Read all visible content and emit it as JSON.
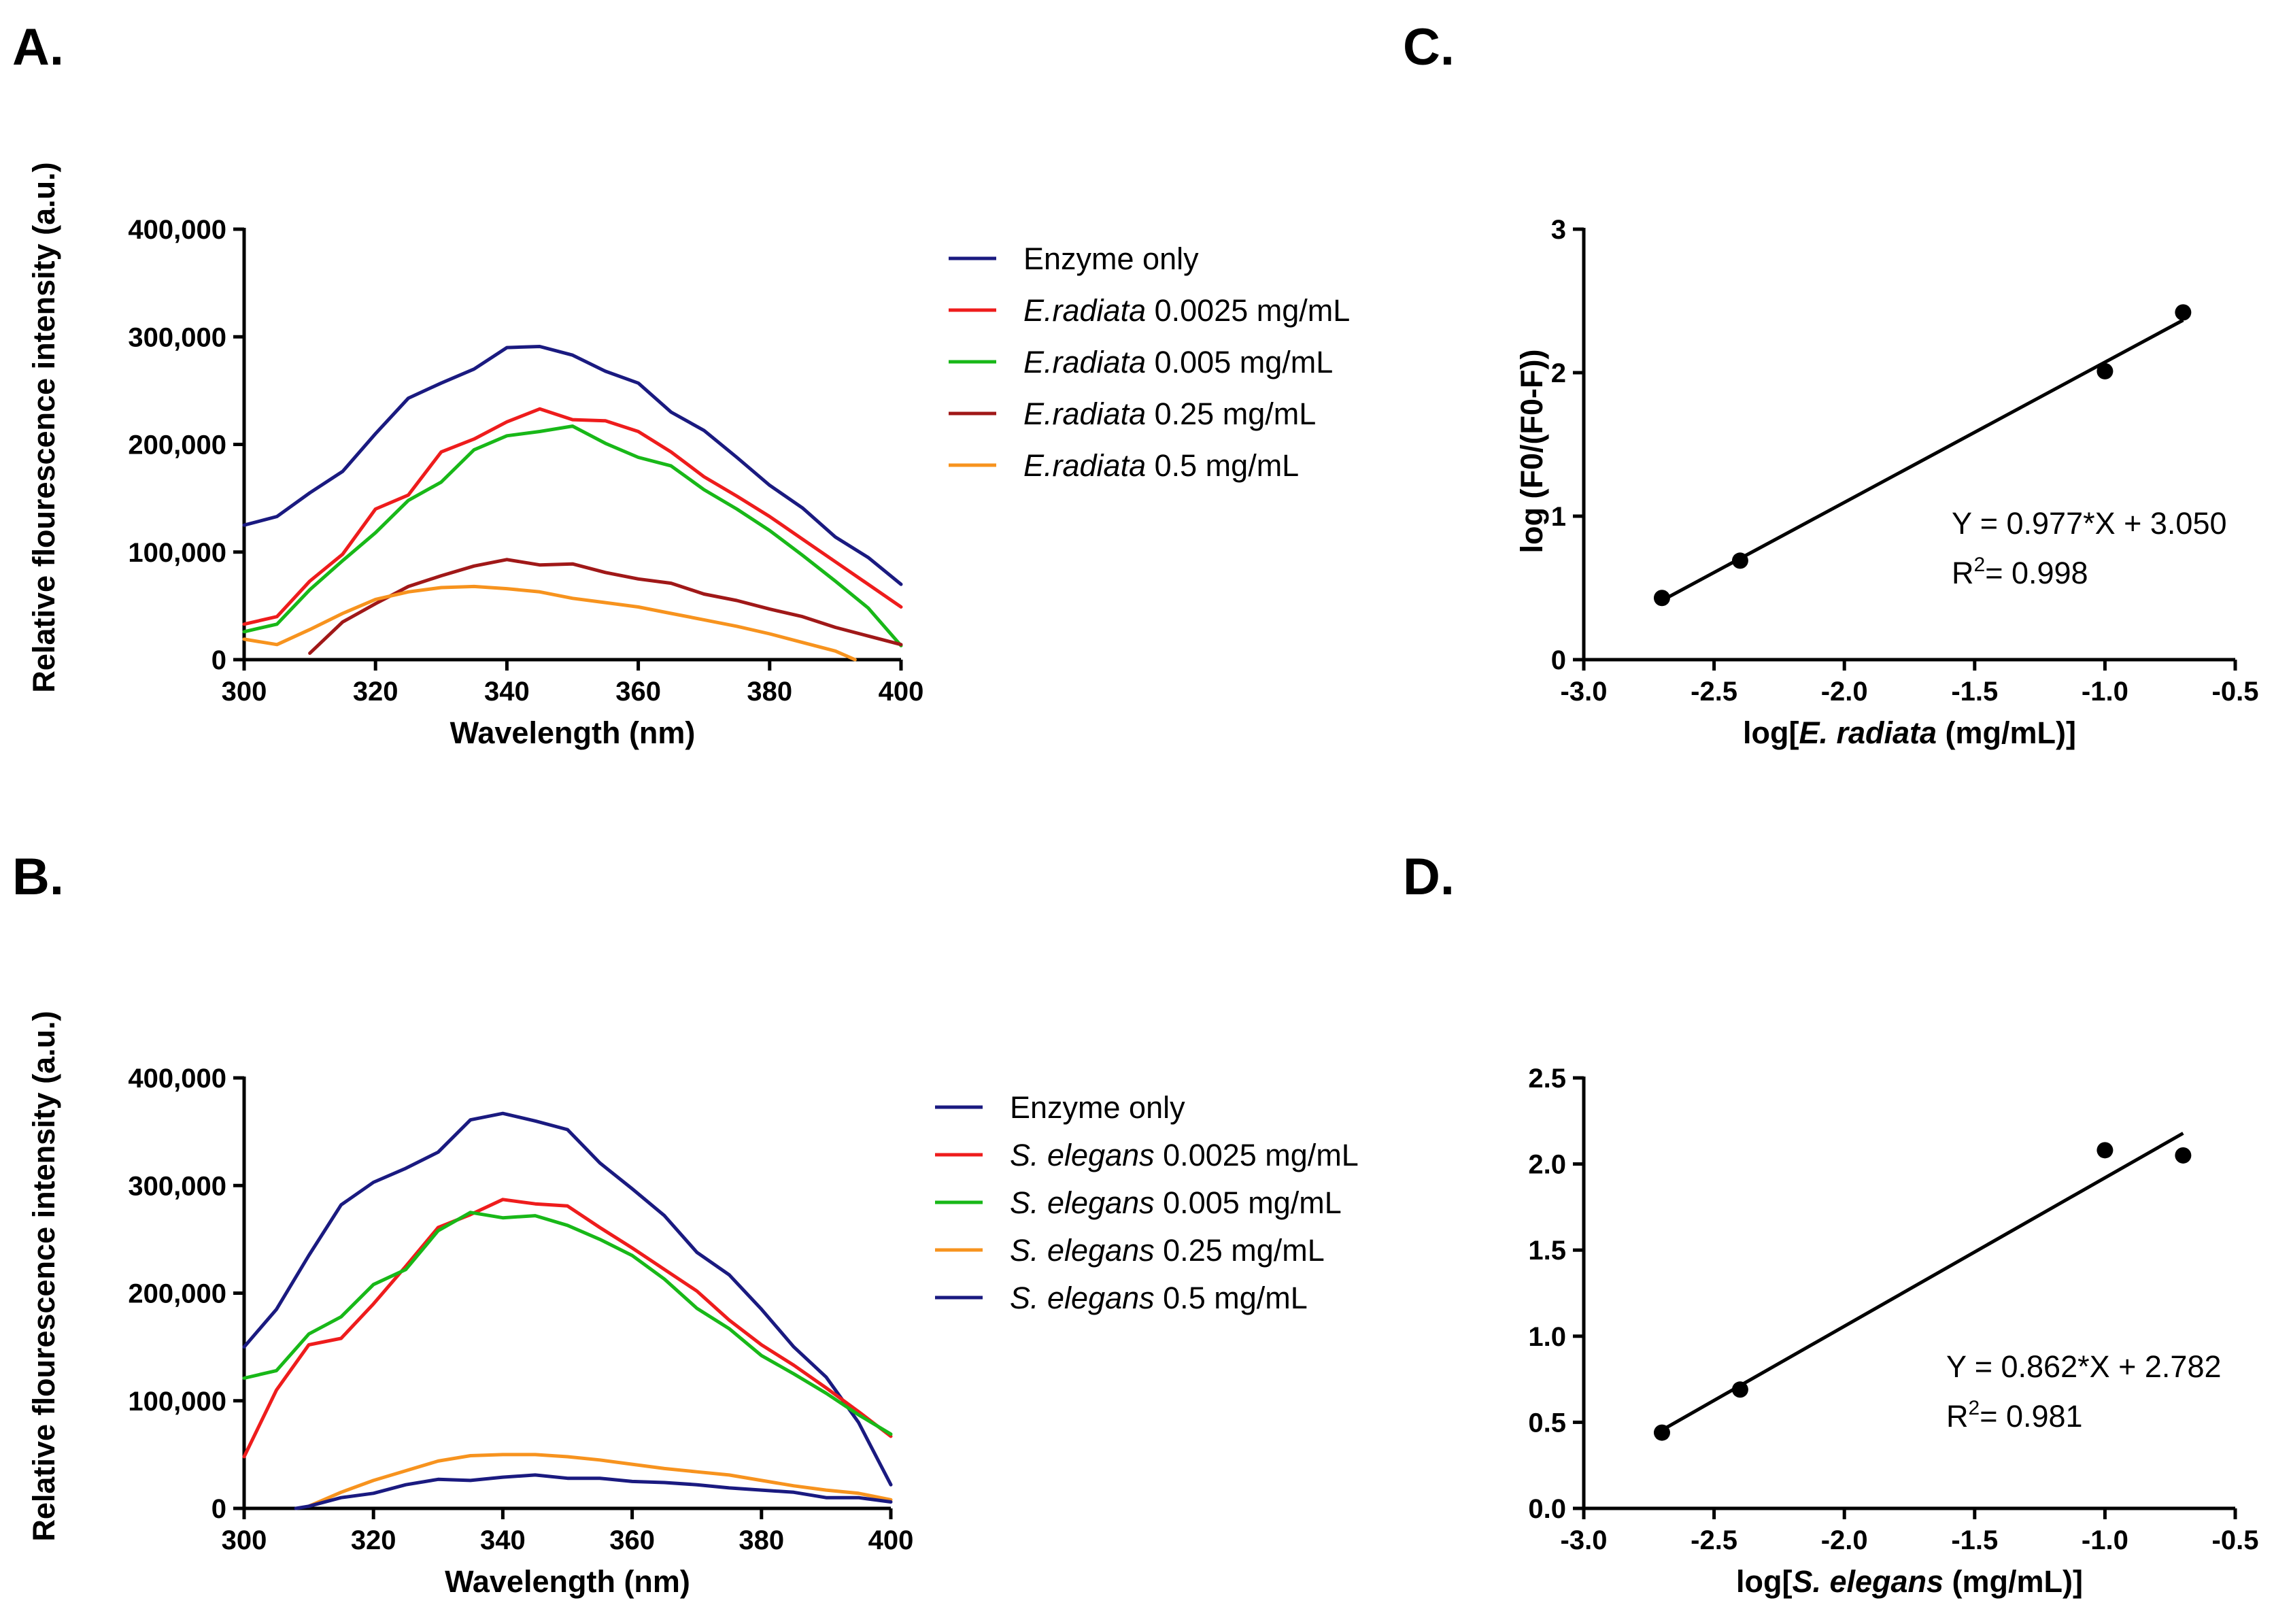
{
  "chart_data": [
    {
      "id": "A",
      "panel_label": "A.",
      "type": "line",
      "xlabel": "Wavelength (nm)",
      "ylabel": "Relative flourescence intensity (a.u.)",
      "xlim": [
        300,
        400
      ],
      "ylim": [
        0,
        400000
      ],
      "xticks": [
        300,
        320,
        340,
        360,
        380,
        400
      ],
      "yticks": [
        0,
        100000,
        200000,
        300000,
        400000
      ],
      "ytick_labels": [
        "0",
        "100,000",
        "200,000",
        "300,000",
        "400,000"
      ],
      "x": [
        300,
        305,
        310,
        315,
        320,
        325,
        330,
        335,
        340,
        345,
        350,
        355,
        360,
        365,
        370,
        375,
        380,
        385,
        390,
        395,
        400
      ],
      "series": [
        {
          "name": "Enzyme only",
          "species": "",
          "conc": "",
          "color": "#1a1a80",
          "values": [
            125000,
            133000,
            155000,
            175000,
            210000,
            243000,
            257000,
            270000,
            290000,
            291000,
            283000,
            268000,
            257000,
            230000,
            213000,
            188000,
            162000,
            141000,
            114000,
            95000,
            70000
          ]
        },
        {
          "name": "E.radiata 0.0025 mg/mL",
          "species": "E.radiata",
          "conc": " 0.0025 mg/mL",
          "color": "#ee1c1c",
          "values": [
            33000,
            40000,
            73000,
            98000,
            140000,
            153000,
            193000,
            205000,
            221000,
            233000,
            223000,
            222000,
            212000,
            193000,
            170000,
            152000,
            133000,
            112000,
            91000,
            70000,
            49000
          ]
        },
        {
          "name": "E.radiata 0.005 mg/mL",
          "species": "E.radiata",
          "conc": "   0.005 mg/mL",
          "color": "#18b818",
          "values": [
            26000,
            33000,
            65000,
            92000,
            118000,
            148000,
            165000,
            195000,
            208000,
            212000,
            217000,
            201000,
            188000,
            180000,
            158000,
            140000,
            120000,
            97000,
            73000,
            48000,
            13000
          ]
        },
        {
          "name": "E.radiata 0.25 mg/mL",
          "species": "E.radiata",
          "conc": "   0.25 mg/mL",
          "color": "#a01818",
          "values": [
            null,
            null,
            6000,
            35000,
            52000,
            68000,
            78000,
            87000,
            93000,
            88000,
            89000,
            81000,
            75000,
            71000,
            61000,
            55000,
            47000,
            40000,
            30000,
            22000,
            14000
          ]
        },
        {
          "name": "E.radiata 0.5 mg/mL",
          "species": "E.radiata",
          "conc": "  0.5 mg/mL",
          "color": "#f7931e",
          "values": [
            19000,
            14000,
            28000,
            43000,
            56000,
            63000,
            67000,
            68000,
            66000,
            63000,
            57000,
            53000,
            49000,
            43000,
            37000,
            31000,
            24000,
            16000,
            8000,
            null,
            null
          ],
          "tail": [
            [
              393,
              0
            ]
          ]
        }
      ]
    },
    {
      "id": "B",
      "panel_label": "B.",
      "type": "line",
      "xlabel": "Wavelength (nm)",
      "ylabel": "Relative flourescence intensity (a.u.)",
      "xlim": [
        300,
        400
      ],
      "ylim": [
        0,
        400000
      ],
      "xticks": [
        300,
        320,
        340,
        360,
        380,
        400
      ],
      "yticks": [
        0,
        100000,
        200000,
        300000,
        400000
      ],
      "ytick_labels": [
        "0",
        "100,000",
        "200,000",
        "300,000",
        "400,000"
      ],
      "x": [
        300,
        305,
        310,
        315,
        320,
        325,
        330,
        335,
        340,
        345,
        350,
        355,
        360,
        365,
        370,
        375,
        380,
        385,
        390,
        395,
        400
      ],
      "series": [
        {
          "name": "Enzyme only",
          "species": "",
          "conc": "",
          "color": "#1a1a80",
          "values": [
            150000,
            185000,
            235000,
            282000,
            303000,
            316000,
            331000,
            361000,
            367000,
            360000,
            352000,
            321000,
            297000,
            272000,
            238000,
            217000,
            185000,
            150000,
            122000,
            80000,
            22000
          ]
        },
        {
          "name": "S. elegans 0.0025 mg/mL",
          "species": "S. elegans",
          "conc": " 0.0025 mg/mL",
          "color": "#ee1c1c",
          "values": [
            48000,
            110000,
            152000,
            158000,
            190000,
            225000,
            261000,
            273000,
            287000,
            283000,
            281000,
            261000,
            242000,
            222000,
            202000,
            175000,
            152000,
            133000,
            112000,
            90000,
            67000
          ]
        },
        {
          "name": "S. elegans 0.005 mg/mL",
          "species": "S. elegans",
          "conc": " 0.005 mg/mL",
          "color": "#18b818",
          "values": [
            121000,
            128000,
            162000,
            178000,
            208000,
            222000,
            258000,
            275000,
            270000,
            272000,
            263000,
            250000,
            235000,
            213000,
            186000,
            167000,
            142000,
            125000,
            107000,
            87000,
            69000
          ]
        },
        {
          "name": "S. elegans 0.25 mg/mL",
          "species": "S. elegans",
          "conc": "  0.25 mg/mL",
          "color": "#f7931e",
          "values": [
            null,
            null,
            2000,
            15000,
            26000,
            35000,
            44000,
            49000,
            50000,
            50000,
            48000,
            45000,
            41000,
            37000,
            34000,
            31000,
            26000,
            21000,
            17000,
            14000,
            8000
          ]
        },
        {
          "name": "S. elegans 0.5 mg/mL",
          "species": "S. elegans",
          "conc": "  0.5 mg/mL",
          "color": "#1a1a80",
          "values": [
            null,
            null,
            2000,
            10000,
            14000,
            22000,
            27000,
            26000,
            29000,
            31000,
            28000,
            28000,
            25000,
            24000,
            22000,
            19000,
            17000,
            15000,
            10000,
            10000,
            6000
          ],
          "head": [
            [
              308,
              0
            ]
          ]
        }
      ]
    },
    {
      "id": "C",
      "panel_label": "C.",
      "type": "scatter",
      "xlabel_pre": "log[",
      "xlabel_italic": "E. radiata",
      "xlabel_post": " (mg/mL)]",
      "ylabel": "log (F0/(F0-F))",
      "xlim": [
        -3.0,
        -0.5
      ],
      "ylim": [
        0,
        3
      ],
      "xticks": [
        -3.0,
        -2.5,
        -2.0,
        -1.5,
        -1.0,
        -0.5
      ],
      "xtick_labels": [
        "-3.0",
        "-2.5",
        "-2.0",
        "-1.5",
        "-1.0",
        "-0.5"
      ],
      "yticks": [
        0,
        1,
        2,
        3
      ],
      "ytick_labels": [
        "0",
        "1",
        "2",
        "3"
      ],
      "points": [
        [
          -2.7,
          0.43
        ],
        [
          -2.4,
          0.69
        ],
        [
          -1.0,
          2.01
        ],
        [
          -0.7,
          2.42
        ]
      ],
      "fit": {
        "slope": 0.977,
        "intercept": 3.05,
        "x_range": [
          -2.7,
          -0.7
        ]
      },
      "equation": "Y = 0.977*X + 3.050",
      "r2_prefix": "R",
      "r2_sup": "2",
      "r2_value": "= 0.998"
    },
    {
      "id": "D",
      "panel_label": "D.",
      "type": "scatter",
      "xlabel_pre": "log[",
      "xlabel_italic": "S. elegans",
      "xlabel_post": " (mg/mL)]",
      "ylabel": "",
      "xlim": [
        -3.0,
        -0.5
      ],
      "ylim": [
        0,
        2.5
      ],
      "xticks": [
        -3.0,
        -2.5,
        -2.0,
        -1.5,
        -1.0,
        -0.5
      ],
      "xtick_labels": [
        "-3.0",
        "-2.5",
        "-2.0",
        "-1.5",
        "-1.0",
        "-0.5"
      ],
      "yticks": [
        0,
        0.5,
        1.0,
        1.5,
        2.0,
        2.5
      ],
      "ytick_labels": [
        "0.0",
        "0.5",
        "1.0",
        "1.5",
        "2.0",
        "2.5"
      ],
      "points": [
        [
          -2.7,
          0.44
        ],
        [
          -2.4,
          0.69
        ],
        [
          -1.0,
          2.08
        ],
        [
          -0.7,
          2.05
        ]
      ],
      "fit": {
        "slope": 0.862,
        "intercept": 2.782,
        "x_range": [
          -2.7,
          -0.7
        ]
      },
      "equation": "Y = 0.862*X + 2.782",
      "r2_prefix": "R",
      "r2_sup": "2",
      "r2_value": "= 0.981"
    }
  ]
}
